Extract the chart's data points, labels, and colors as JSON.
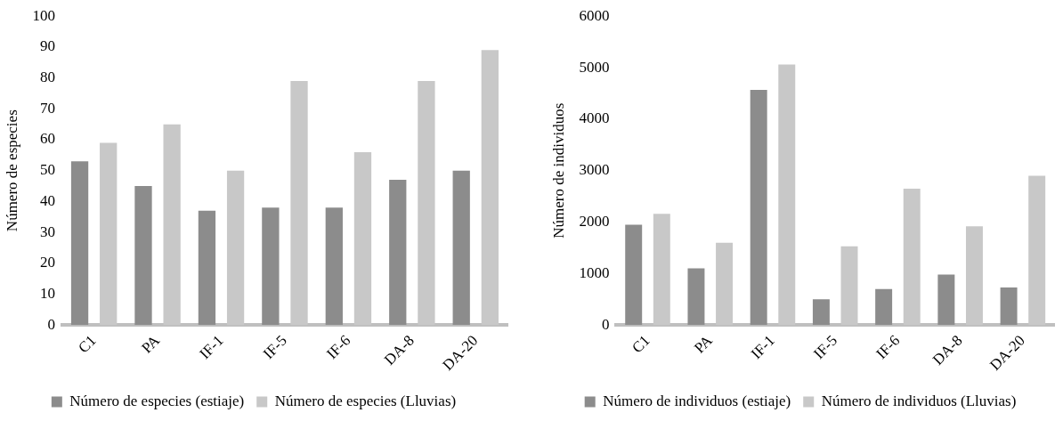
{
  "chart_data": [
    {
      "type": "bar",
      "ylabel": "Número de especies",
      "categories": [
        "C1",
        "PA",
        "IF-1",
        "IF-5",
        "IF-6",
        "DA-8",
        "DA-20"
      ],
      "series": [
        {
          "name": "Número de especies (estiaje)",
          "color": "#8c8c8c",
          "values": [
            53,
            45,
            37,
            38,
            38,
            47,
            50
          ]
        },
        {
          "name": "Número de especies (Lluvias)",
          "color": "#c8c8c8",
          "values": [
            59,
            65,
            50,
            79,
            56,
            79,
            89
          ]
        }
      ],
      "ylim": [
        0,
        100
      ],
      "yticks": [
        0,
        10,
        20,
        30,
        40,
        50,
        60,
        70,
        80,
        90,
        100
      ],
      "grid": false,
      "legend": "bottom"
    },
    {
      "type": "bar",
      "ylabel": "Número de individuos",
      "categories": [
        "C1",
        "PA",
        "IF-1",
        "IF-5",
        "IF-6",
        "DA-8",
        "DA-20"
      ],
      "series": [
        {
          "name": "Número de individuos (estiaje)",
          "color": "#8c8c8c",
          "values": [
            1950,
            1100,
            4570,
            500,
            700,
            980,
            730
          ]
        },
        {
          "name": "Número de individuos (Lluvias)",
          "color": "#c8c8c8",
          "values": [
            2160,
            1600,
            5060,
            1530,
            2650,
            1920,
            2900
          ]
        }
      ],
      "ylim": [
        0,
        6000
      ],
      "yticks": [
        0,
        1000,
        2000,
        3000,
        4000,
        5000,
        6000
      ],
      "grid": false,
      "legend": "bottom"
    }
  ]
}
